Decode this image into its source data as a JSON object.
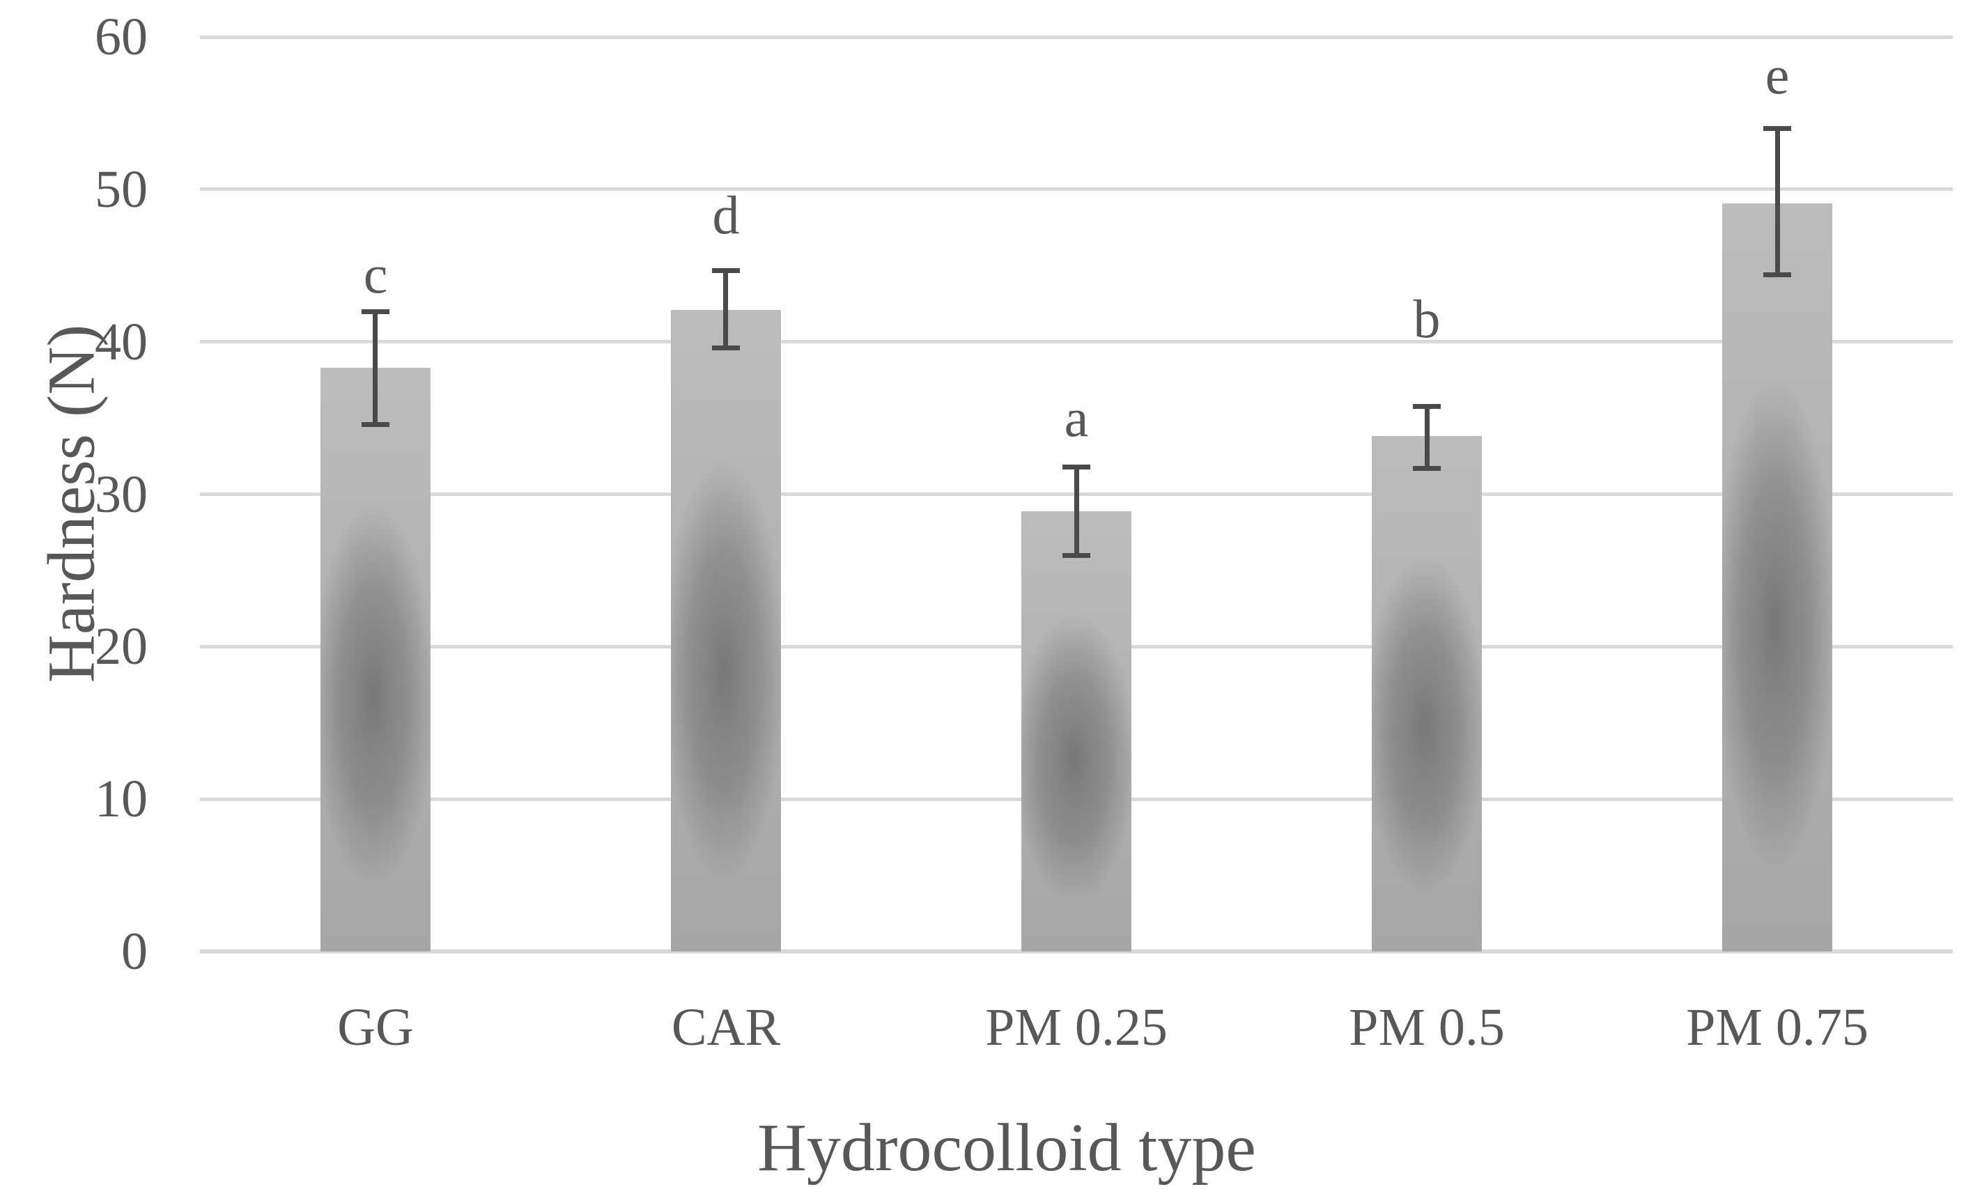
{
  "chart_data": {
    "type": "bar",
    "title": "",
    "xlabel": "Hydrocolloid type",
    "ylabel": "Hardness (N)",
    "categories": [
      "GG",
      "CAR",
      "PM 0.25",
      "PM 0.5",
      "PM 0.75"
    ],
    "values": [
      38.3,
      42.1,
      28.9,
      33.8,
      49.1
    ],
    "error_plus": [
      3.7,
      2.6,
      2.9,
      2.0,
      4.9
    ],
    "error_minus": [
      3.7,
      2.5,
      2.9,
      2.1,
      4.7
    ],
    "sig_letters": [
      "c",
      "d",
      "a",
      "b",
      "e"
    ],
    "sig_letter_y": [
      44.4,
      48.3,
      35.0,
      41.5,
      57.5
    ],
    "ylim": [
      0,
      60
    ],
    "yticks": [
      0,
      10,
      20,
      30,
      40,
      50,
      60
    ],
    "grid": true,
    "legend": false,
    "colors": {
      "text": "#585858",
      "gridline": "#d9d9d9",
      "error_bar": "#4a4a4a",
      "bar_top": "#bcbcbc",
      "bar_bottom": "#a6a6a6",
      "bar_shadow_center": "#464646"
    }
  }
}
